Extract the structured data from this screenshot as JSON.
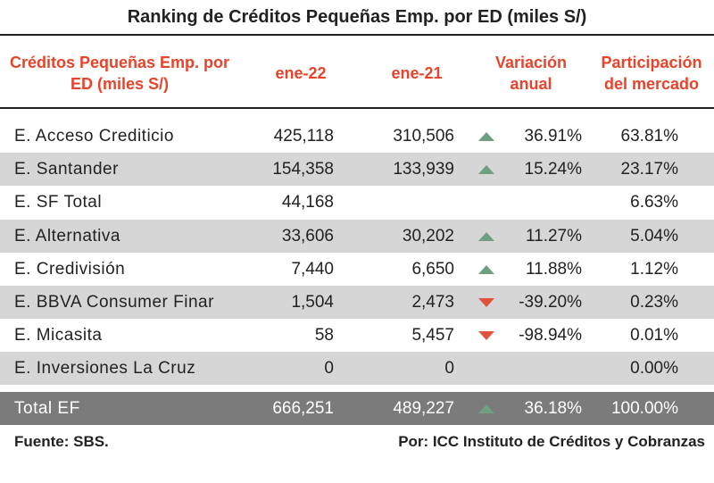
{
  "title": "Ranking de Créditos Pequeñas Emp. por ED (miles S/)",
  "headers": {
    "label": "Créditos Pequeñas Emp. por ED (miles S/)",
    "col1": "ene-22",
    "col2": "ene-21",
    "col3": "Variación anual",
    "col4": "Participación del mercado"
  },
  "rows": [
    {
      "name": "E. Acceso Crediticio",
      "v1": "425,118",
      "v2": "310,506",
      "arrow": "up",
      "var": "36.91%",
      "part": "63.81%"
    },
    {
      "name": "E. Santander",
      "v1": "154,358",
      "v2": "133,939",
      "arrow": "up",
      "var": "15.24%",
      "part": "23.17%"
    },
    {
      "name": "E. SF Total",
      "v1": "44,168",
      "v2": "",
      "arrow": "",
      "var": "",
      "part": "6.63%"
    },
    {
      "name": "E. Alternativa",
      "v1": "33,606",
      "v2": "30,202",
      "arrow": "up",
      "var": "11.27%",
      "part": "5.04%"
    },
    {
      "name": "E. Credivisión",
      "v1": "7,440",
      "v2": "6,650",
      "arrow": "up",
      "var": "11.88%",
      "part": "1.12%"
    },
    {
      "name": "E. BBVA Consumer Finar",
      "v1": "1,504",
      "v2": "2,473",
      "arrow": "down",
      "var": "-39.20%",
      "part": "0.23%"
    },
    {
      "name": "E. Micasita",
      "v1": "58",
      "v2": "5,457",
      "arrow": "down",
      "var": "-98.94%",
      "part": "0.01%"
    },
    {
      "name": "E. Inversiones La Cruz",
      "v1": "0",
      "v2": "0",
      "arrow": "",
      "var": "",
      "part": "0.00%"
    }
  ],
  "total": {
    "name": "Total EF",
    "v1": "666,251",
    "v2": "489,227",
    "arrow": "up",
    "var": "36.18%",
    "part": "100.00%"
  },
  "footer": {
    "source": "Fuente: SBS.",
    "credit": "Por: ICC Instituto de Créditos y Cobranzas"
  },
  "colors": {
    "header_text": "#e8432b",
    "arrow_up": "#6f9f82",
    "arrow_down": "#e0533a",
    "row_shade": "#d6d6d6",
    "total_bg": "#7b7b7b"
  }
}
